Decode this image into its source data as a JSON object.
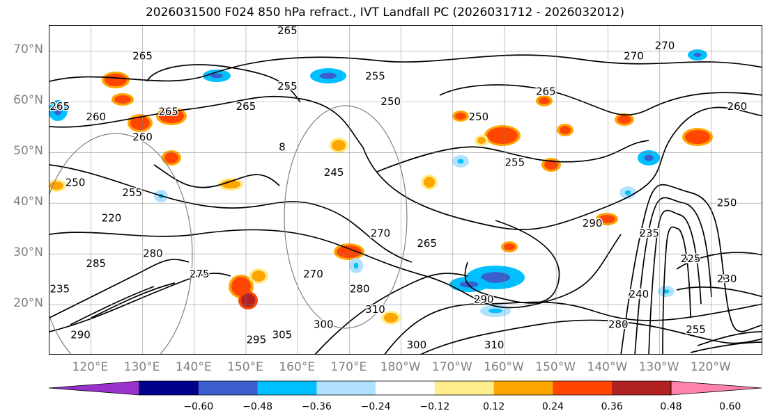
{
  "title": "2026031500 F024 850 hPa refract., IVT Landfall PC (2026031712 - 2026032012)",
  "map": {
    "extent": {
      "lon_min": 112,
      "lon_max": 250,
      "lat_min": 10,
      "lat_max": 75
    },
    "lat_labels": [
      {
        "lat": 70,
        "text": "70°N"
      },
      {
        "lat": 60,
        "text": "60°N"
      },
      {
        "lat": 50,
        "text": "50°N"
      },
      {
        "lat": 40,
        "text": "40°N"
      },
      {
        "lat": 30,
        "text": "30°N"
      },
      {
        "lat": 20,
        "text": "20°N"
      }
    ],
    "lon_labels": [
      {
        "lon": 120,
        "text": "120°E"
      },
      {
        "lon": 130,
        "text": "130°E"
      },
      {
        "lon": 140,
        "text": "140°E"
      },
      {
        "lon": 150,
        "text": "150°E"
      },
      {
        "lon": 160,
        "text": "160°E"
      },
      {
        "lon": 170,
        "text": "170°E"
      },
      {
        "lon": 180,
        "text": "180°W"
      },
      {
        "lon": 190,
        "text": "170°W"
      },
      {
        "lon": 200,
        "text": "160°W"
      },
      {
        "lon": 210,
        "text": "150°W"
      },
      {
        "lon": 220,
        "text": "140°W"
      },
      {
        "lon": 230,
        "text": "130°W"
      },
      {
        "lon": 240,
        "text": "120°W"
      }
    ],
    "contour_labels": [
      {
        "lon": 158,
        "lat": 74,
        "text": "265"
      },
      {
        "lon": 130,
        "lat": 69,
        "text": "265"
      },
      {
        "lon": 231,
        "lat": 71,
        "text": "270"
      },
      {
        "lon": 225,
        "lat": 69,
        "text": "270"
      },
      {
        "lon": 175,
        "lat": 65,
        "text": "255"
      },
      {
        "lon": 158,
        "lat": 63,
        "text": "255"
      },
      {
        "lon": 208,
        "lat": 62,
        "text": "265"
      },
      {
        "lon": 114,
        "lat": 59,
        "text": "265"
      },
      {
        "lon": 121,
        "lat": 57,
        "text": "260"
      },
      {
        "lon": 150,
        "lat": 59,
        "text": "265"
      },
      {
        "lon": 135,
        "lat": 58,
        "text": "265"
      },
      {
        "lon": 178,
        "lat": 60,
        "text": "250"
      },
      {
        "lon": 195,
        "lat": 57,
        "text": "250"
      },
      {
        "lon": 245,
        "lat": 59,
        "text": "260"
      },
      {
        "lon": 130,
        "lat": 53,
        "text": "260"
      },
      {
        "lon": 157,
        "lat": 51,
        "text": "8"
      },
      {
        "lon": 167,
        "lat": 46,
        "text": "245"
      },
      {
        "lon": 202,
        "lat": 48,
        "text": "255"
      },
      {
        "lon": 117,
        "lat": 44,
        "text": "250"
      },
      {
        "lon": 128,
        "lat": 42,
        "text": "255"
      },
      {
        "lon": 124,
        "lat": 37,
        "text": "220"
      },
      {
        "lon": 243,
        "lat": 40,
        "text": "250"
      },
      {
        "lon": 217,
        "lat": 36,
        "text": "290"
      },
      {
        "lon": 228,
        "lat": 34,
        "text": "235"
      },
      {
        "lon": 176,
        "lat": 34,
        "text": "270"
      },
      {
        "lon": 185,
        "lat": 32,
        "text": "265"
      },
      {
        "lon": 132,
        "lat": 30,
        "text": "280"
      },
      {
        "lon": 121,
        "lat": 28,
        "text": "285"
      },
      {
        "lon": 236,
        "lat": 29,
        "text": "225"
      },
      {
        "lon": 141,
        "lat": 26,
        "text": "275"
      },
      {
        "lon": 163,
        "lat": 26,
        "text": "270"
      },
      {
        "lon": 172,
        "lat": 23,
        "text": "280"
      },
      {
        "lon": 226,
        "lat": 22,
        "text": "240"
      },
      {
        "lon": 243,
        "lat": 25,
        "text": "230"
      },
      {
        "lon": 114,
        "lat": 23,
        "text": "235"
      },
      {
        "lon": 196,
        "lat": 21,
        "text": "290"
      },
      {
        "lon": 175,
        "lat": 19,
        "text": "310"
      },
      {
        "lon": 165,
        "lat": 16,
        "text": "300"
      },
      {
        "lon": 157,
        "lat": 14,
        "text": "305"
      },
      {
        "lon": 152,
        "lat": 13,
        "text": "295"
      },
      {
        "lon": 183,
        "lat": 12,
        "text": "300"
      },
      {
        "lon": 198,
        "lat": 12,
        "text": "310"
      },
      {
        "lon": 118,
        "lat": 14,
        "text": "290"
      },
      {
        "lon": 222,
        "lat": 16,
        "text": "280"
      },
      {
        "lon": 237,
        "lat": 15,
        "text": "255"
      }
    ]
  },
  "colorbar": {
    "colors": [
      "#9932CC",
      "#00008B",
      "#3A5FCD",
      "#00BFFF",
      "#B0E2FF",
      "#FFFFFF",
      "#FFEC8B",
      "#FFA500",
      "#FF4500",
      "#B22222",
      "#FF82AB"
    ],
    "ticks": [
      "−0.60",
      "−0.48",
      "−0.36",
      "−0.24",
      "−0.12",
      "0.12",
      "0.24",
      "0.36",
      "0.48",
      "0.60"
    ]
  }
}
